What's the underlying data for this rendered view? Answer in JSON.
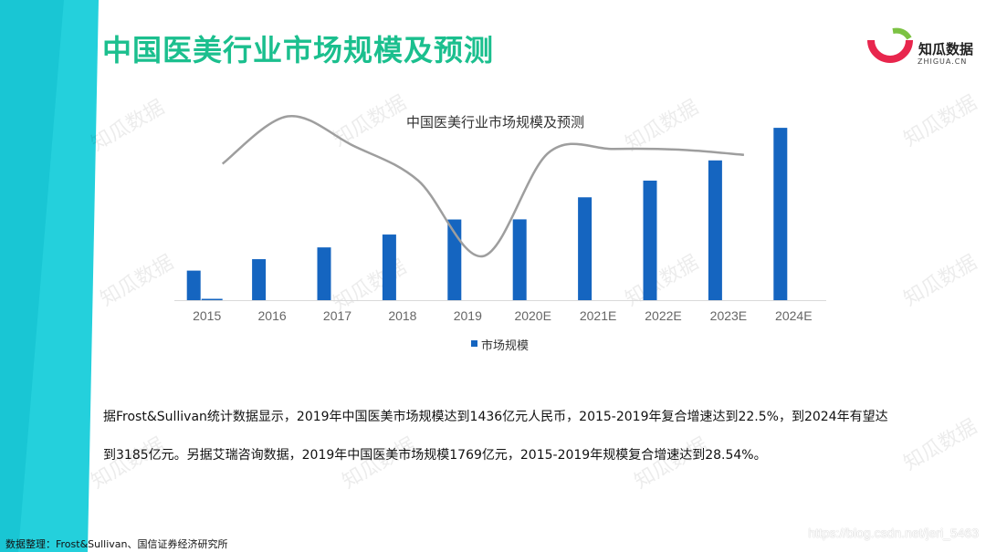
{
  "page": {
    "title": "中国医美行业市场规模及预测",
    "logo_cn": "知瓜数据",
    "logo_en": "ZHIGUA.CN",
    "watermark": "知瓜数据",
    "paragraph_line1": "据Frost&Sullivan统计数据显示，2019年中国医美市场规模达到1436亿元人民币，2015-2019年复合增速达到22.5%，到2024年有望达",
    "paragraph_line2": "到3185亿元。另据艾瑞咨询数据，2019年中国医美市场规模1769亿元，2015-2019年规模复合增速达到28.54%。",
    "source": "数据整理：Frost&Sullivan、国信证券经济研究所",
    "url": "https://blog.csdn.net/jeri_5463",
    "colors": {
      "accent": "#1bbf8e",
      "bar": "#1565c0",
      "curve": "#9e9e9e",
      "band": "#29d3dc"
    }
  },
  "chart_data": {
    "type": "bar",
    "title": "中国医美行业市场规模及预测",
    "categories": [
      "2015",
      "2016",
      "2017",
      "2018",
      "2019",
      "2020E",
      "2021E",
      "2022E",
      "2023E",
      "2024E"
    ],
    "series": [
      {
        "name": "市场规模",
        "values": [
          648,
          899,
          1157,
          1439,
          1769,
          1772,
          2255,
          2621,
          3064,
          3778
        ]
      },
      {
        "name": "",
        "values": [
          20,
          0,
          0,
          0,
          0,
          0,
          0,
          0,
          0,
          0
        ]
      }
    ],
    "growth_curve": [
      59.8,
      80.6,
      67.8,
      52.5,
      19.3,
      64.6,
      66.3,
      66.0,
      63.7
    ],
    "ylim": [
      0,
      4000
    ],
    "legend_position": "bottom",
    "grid": false
  }
}
